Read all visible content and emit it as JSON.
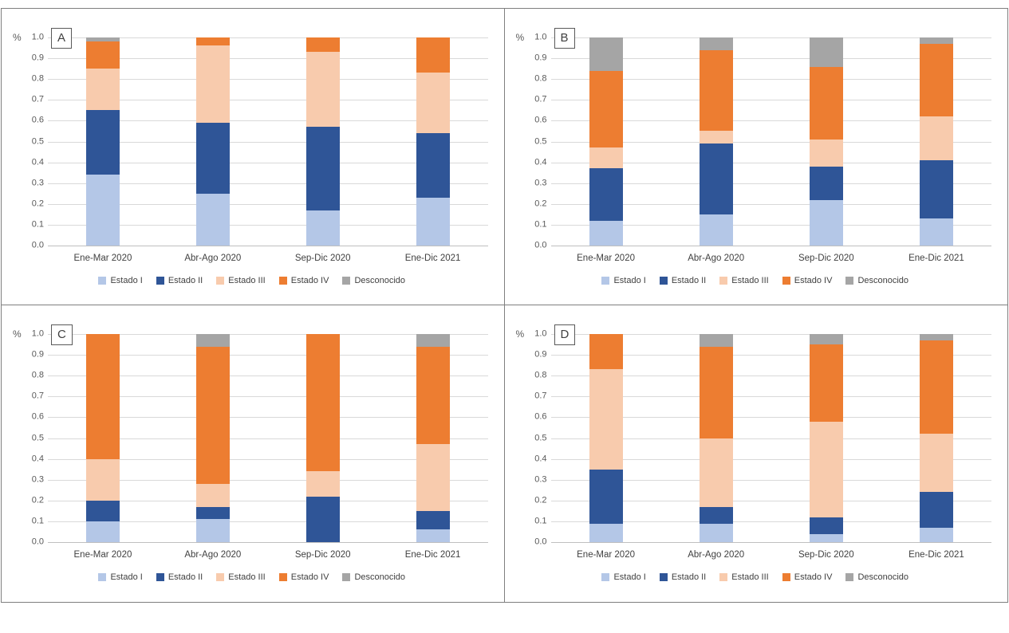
{
  "figure": {
    "y_axis_unit": "%",
    "tick_labels": [
      "1.0",
      "0.9",
      "0.8",
      "0.7",
      "0.6",
      "0.5",
      "0.4",
      "0.3",
      "0.2",
      "0.1",
      "0.0"
    ],
    "grid": true,
    "legend_position": "bottom"
  },
  "colors": {
    "estado_i": "#B4C7E7",
    "estado_ii": "#2F5597",
    "estado_iii": "#F8CBAD",
    "estado_iv": "#ED7D31",
    "desconocido": "#A5A5A5",
    "gridline": "#D9D9D9",
    "panel_border": "#7F7F7F"
  },
  "chart_data": [
    {
      "type": "bar",
      "stacked": true,
      "panel_label": "A",
      "ylabel": "%",
      "ylim": [
        0.0,
        1.0
      ],
      "categories": [
        "Ene-Mar 2020",
        "Abr-Ago 2020",
        "Sep-Dic 2020",
        "Ene-Dic 2021"
      ],
      "series": [
        {
          "name": "Estado I",
          "color": "#B4C7E7",
          "values": [
            0.34,
            0.25,
            0.17,
            0.23
          ]
        },
        {
          "name": "Estado II",
          "color": "#2F5597",
          "values": [
            0.31,
            0.34,
            0.4,
            0.31
          ]
        },
        {
          "name": "Estado III",
          "color": "#F8CBAD",
          "values": [
            0.2,
            0.37,
            0.36,
            0.29
          ]
        },
        {
          "name": "Estado IV",
          "color": "#ED7D31",
          "values": [
            0.13,
            0.04,
            0.07,
            0.17
          ]
        },
        {
          "name": "Desconocido",
          "color": "#A5A5A5",
          "values": [
            0.02,
            0.0,
            0.0,
            0.0
          ]
        }
      ]
    },
    {
      "type": "bar",
      "stacked": true,
      "panel_label": "B",
      "ylabel": "%",
      "ylim": [
        0.0,
        1.0
      ],
      "categories": [
        "Ene-Mar 2020",
        "Abr-Ago 2020",
        "Sep-Dic 2020",
        "Ene-Dic 2021"
      ],
      "series": [
        {
          "name": "Estado I",
          "color": "#B4C7E7",
          "values": [
            0.12,
            0.15,
            0.22,
            0.13
          ]
        },
        {
          "name": "Estado II",
          "color": "#2F5597",
          "values": [
            0.25,
            0.34,
            0.16,
            0.28
          ]
        },
        {
          "name": "Estado III",
          "color": "#F8CBAD",
          "values": [
            0.1,
            0.06,
            0.13,
            0.21
          ]
        },
        {
          "name": "Estado IV",
          "color": "#ED7D31",
          "values": [
            0.37,
            0.39,
            0.35,
            0.35
          ]
        },
        {
          "name": "Desconocido",
          "color": "#A5A5A5",
          "values": [
            0.16,
            0.06,
            0.14,
            0.03
          ]
        }
      ]
    },
    {
      "type": "bar",
      "stacked": true,
      "panel_label": "C",
      "ylabel": "%",
      "ylim": [
        0.0,
        1.0
      ],
      "categories": [
        "Ene-Mar 2020",
        "Abr-Ago 2020",
        "Sep-Dic 2020",
        "Ene-Dic 2021"
      ],
      "series": [
        {
          "name": "Estado I",
          "color": "#B4C7E7",
          "values": [
            0.1,
            0.11,
            0.0,
            0.06
          ]
        },
        {
          "name": "Estado II",
          "color": "#2F5597",
          "values": [
            0.1,
            0.06,
            0.22,
            0.09
          ]
        },
        {
          "name": "Estado III",
          "color": "#F8CBAD",
          "values": [
            0.2,
            0.11,
            0.12,
            0.32
          ]
        },
        {
          "name": "Estado IV",
          "color": "#ED7D31",
          "values": [
            0.6,
            0.66,
            0.66,
            0.47
          ]
        },
        {
          "name": "Desconocido",
          "color": "#A5A5A5",
          "values": [
            0.0,
            0.06,
            0.0,
            0.06
          ]
        }
      ]
    },
    {
      "type": "bar",
      "stacked": true,
      "panel_label": "D",
      "ylabel": "%",
      "ylim": [
        0.0,
        1.0
      ],
      "categories": [
        "Ene-Mar 2020",
        "Abr-Ago 2020",
        "Sep-Dic 2020",
        "Ene-Dic 2021"
      ],
      "series": [
        {
          "name": "Estado I",
          "color": "#B4C7E7",
          "values": [
            0.09,
            0.09,
            0.04,
            0.07
          ]
        },
        {
          "name": "Estado II",
          "color": "#2F5597",
          "values": [
            0.26,
            0.08,
            0.08,
            0.17
          ]
        },
        {
          "name": "Estado III",
          "color": "#F8CBAD",
          "values": [
            0.48,
            0.33,
            0.46,
            0.28
          ]
        },
        {
          "name": "Estado IV",
          "color": "#ED7D31",
          "values": [
            0.17,
            0.44,
            0.37,
            0.45
          ]
        },
        {
          "name": "Desconocido",
          "color": "#A5A5A5",
          "values": [
            0.0,
            0.06,
            0.05,
            0.03
          ]
        }
      ]
    }
  ]
}
